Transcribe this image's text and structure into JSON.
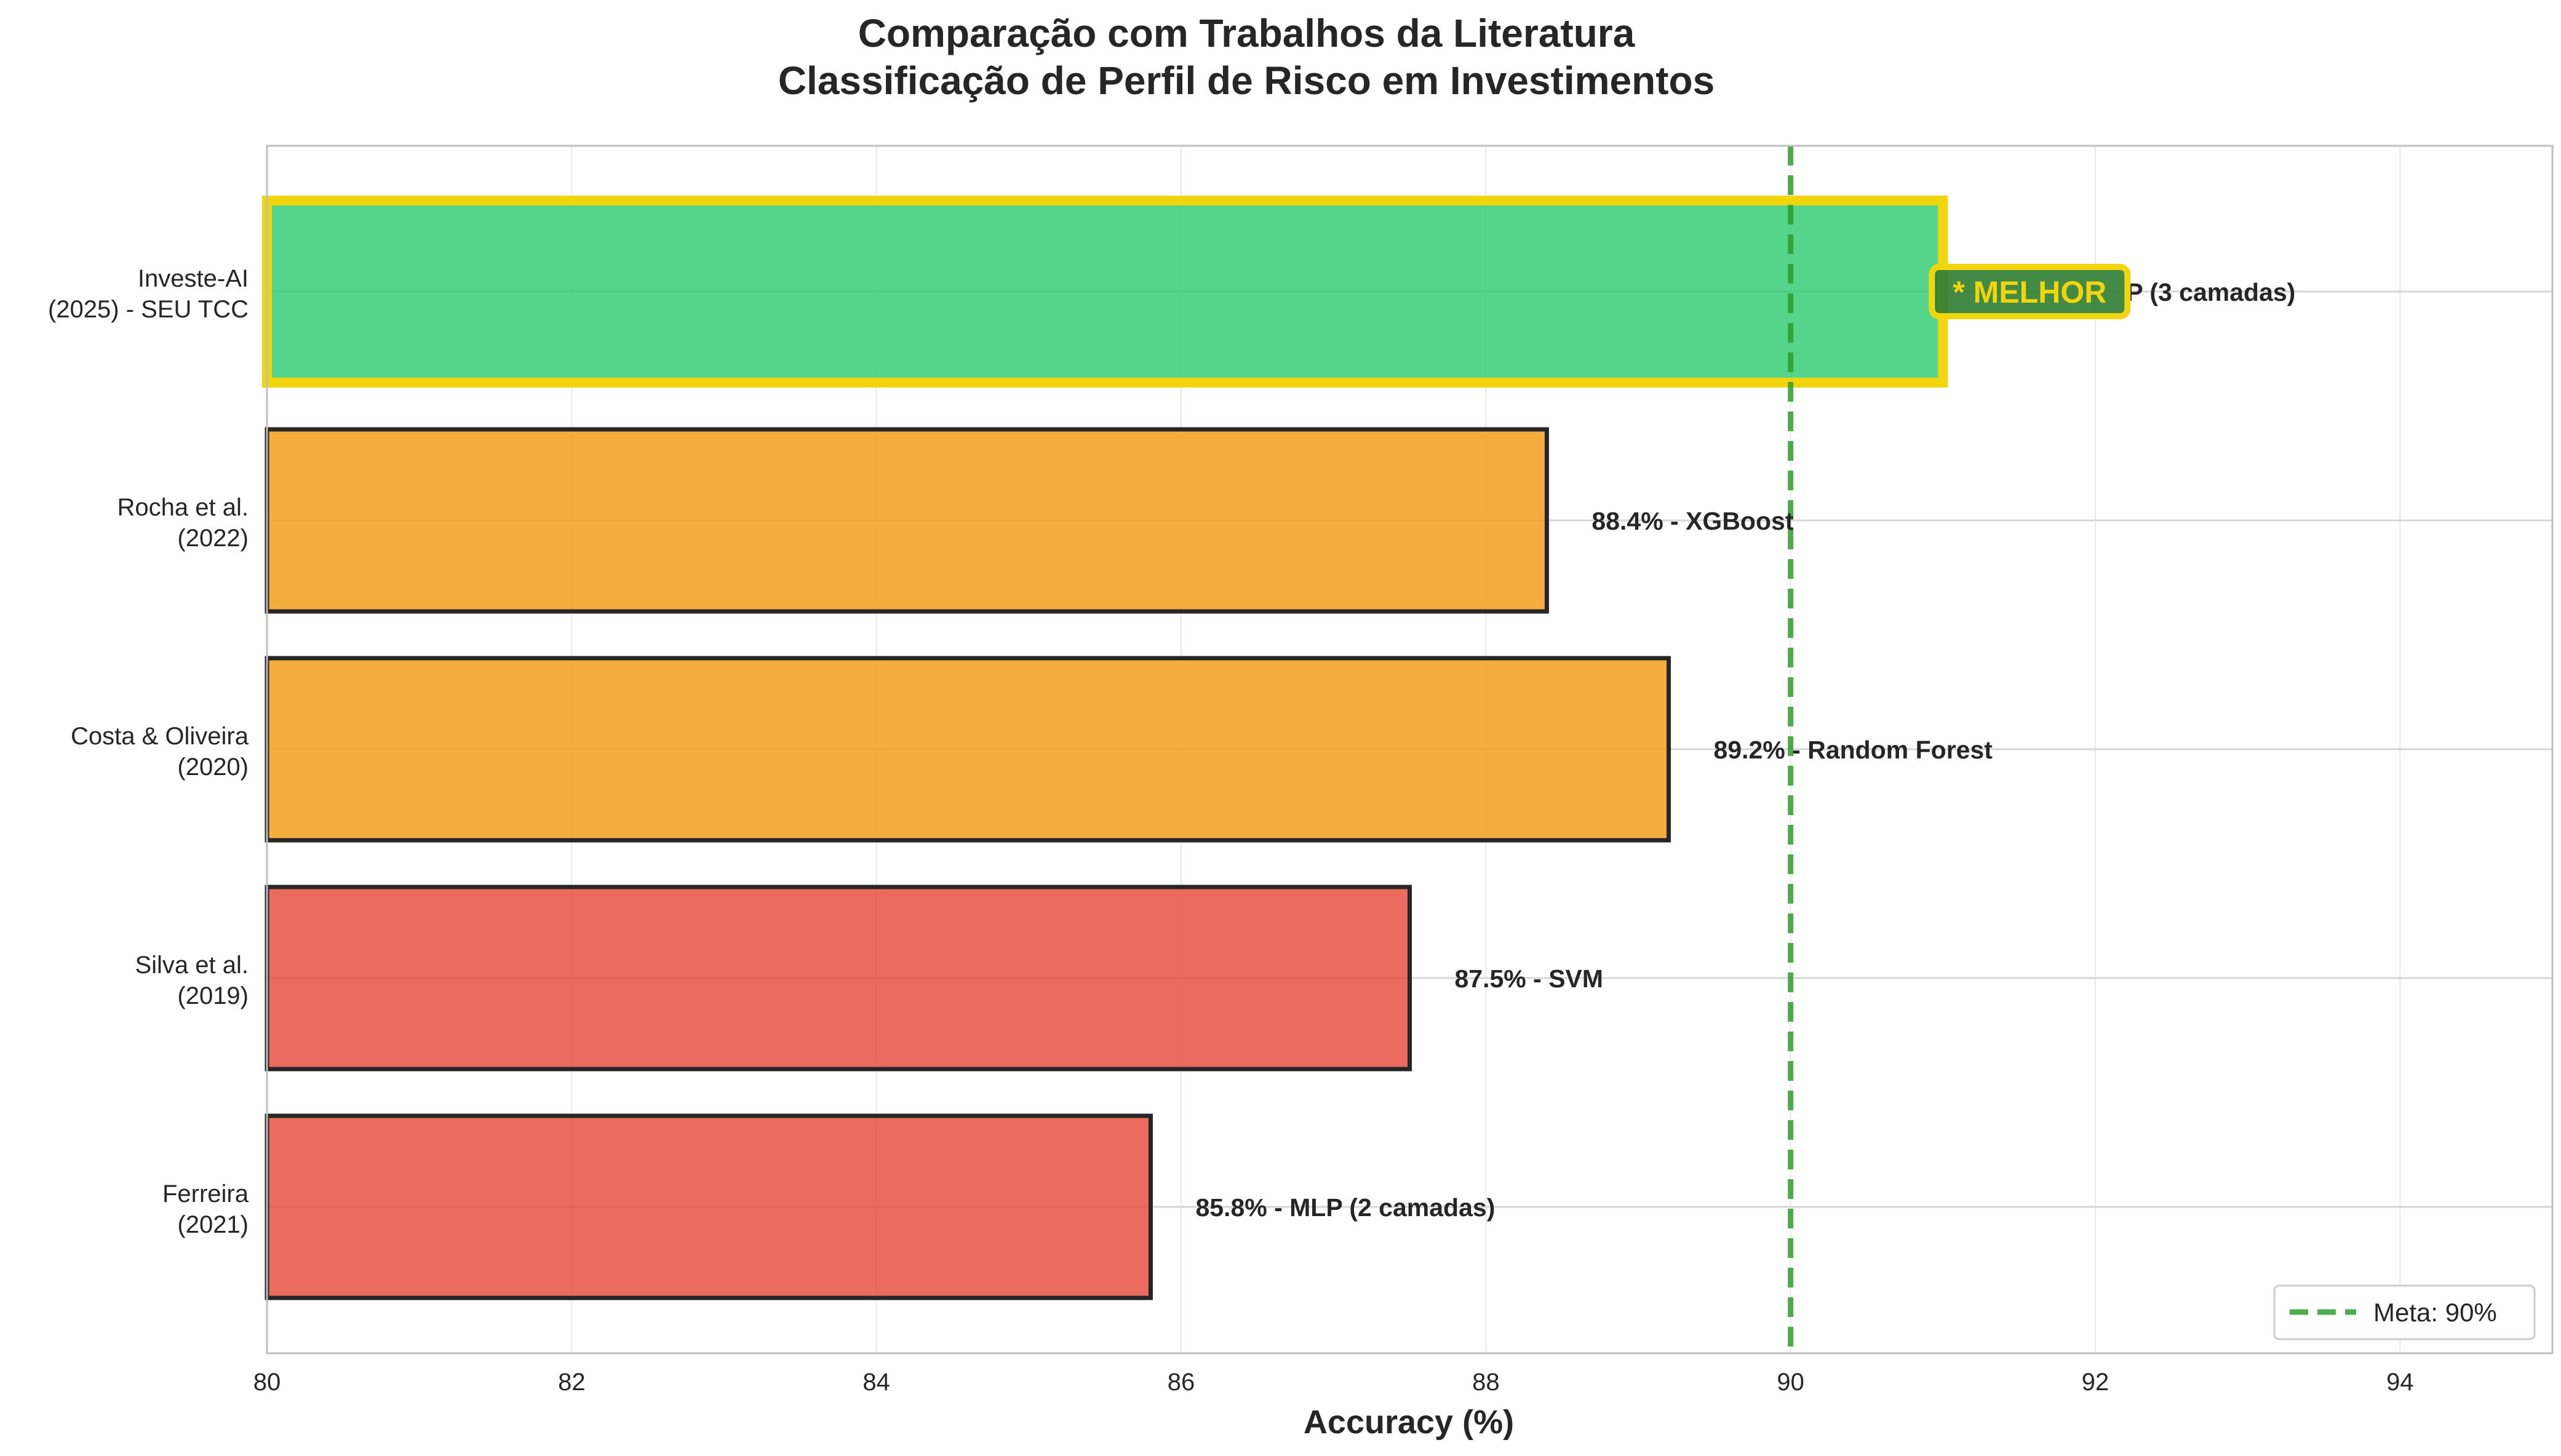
{
  "chart_data": {
    "type": "bar",
    "orientation": "horizontal",
    "title_lines": [
      "Comparação com Trabalhos da Literatura",
      "Classificação de Perfil de Risco em Investimentos"
    ],
    "xlabel": "Accuracy (%)",
    "ylabel": "",
    "xlim": [
      80,
      95
    ],
    "xticks": [
      80,
      82,
      84,
      86,
      88,
      90,
      92,
      94
    ],
    "grid": true,
    "categories": [
      [
        "Investe-AI",
        "(2025) - SEU TCC"
      ],
      [
        "Rocha et al.",
        "(2022)"
      ],
      [
        "Costa & Oliveira",
        "(2020)"
      ],
      [
        "Silva et al.",
        "(2019)"
      ],
      [
        "Ferreira",
        "(2021)"
      ]
    ],
    "values": [
      91.0,
      88.4,
      89.2,
      87.5,
      85.8
    ],
    "data_labels": [
      "P (3 camadas)",
      "88.4% - XGBoost",
      "89.2% - Random Forest",
      "87.5% - SVM",
      "85.8% - MLP (2 camadas)"
    ],
    "colors": [
      "#2ecc71",
      "#f39c12",
      "#f39c12",
      "#e74c3c",
      "#e74c3c"
    ],
    "highlight": {
      "index": 0,
      "badge": "* MELHOR",
      "border_color": "#f2d60d",
      "badge_fill": "#2e7d32"
    },
    "reference_line": {
      "x": 90,
      "label": "Meta: 90%",
      "color": "#2ca02c",
      "style": "dashed"
    },
    "legend_position": "lower-right"
  }
}
